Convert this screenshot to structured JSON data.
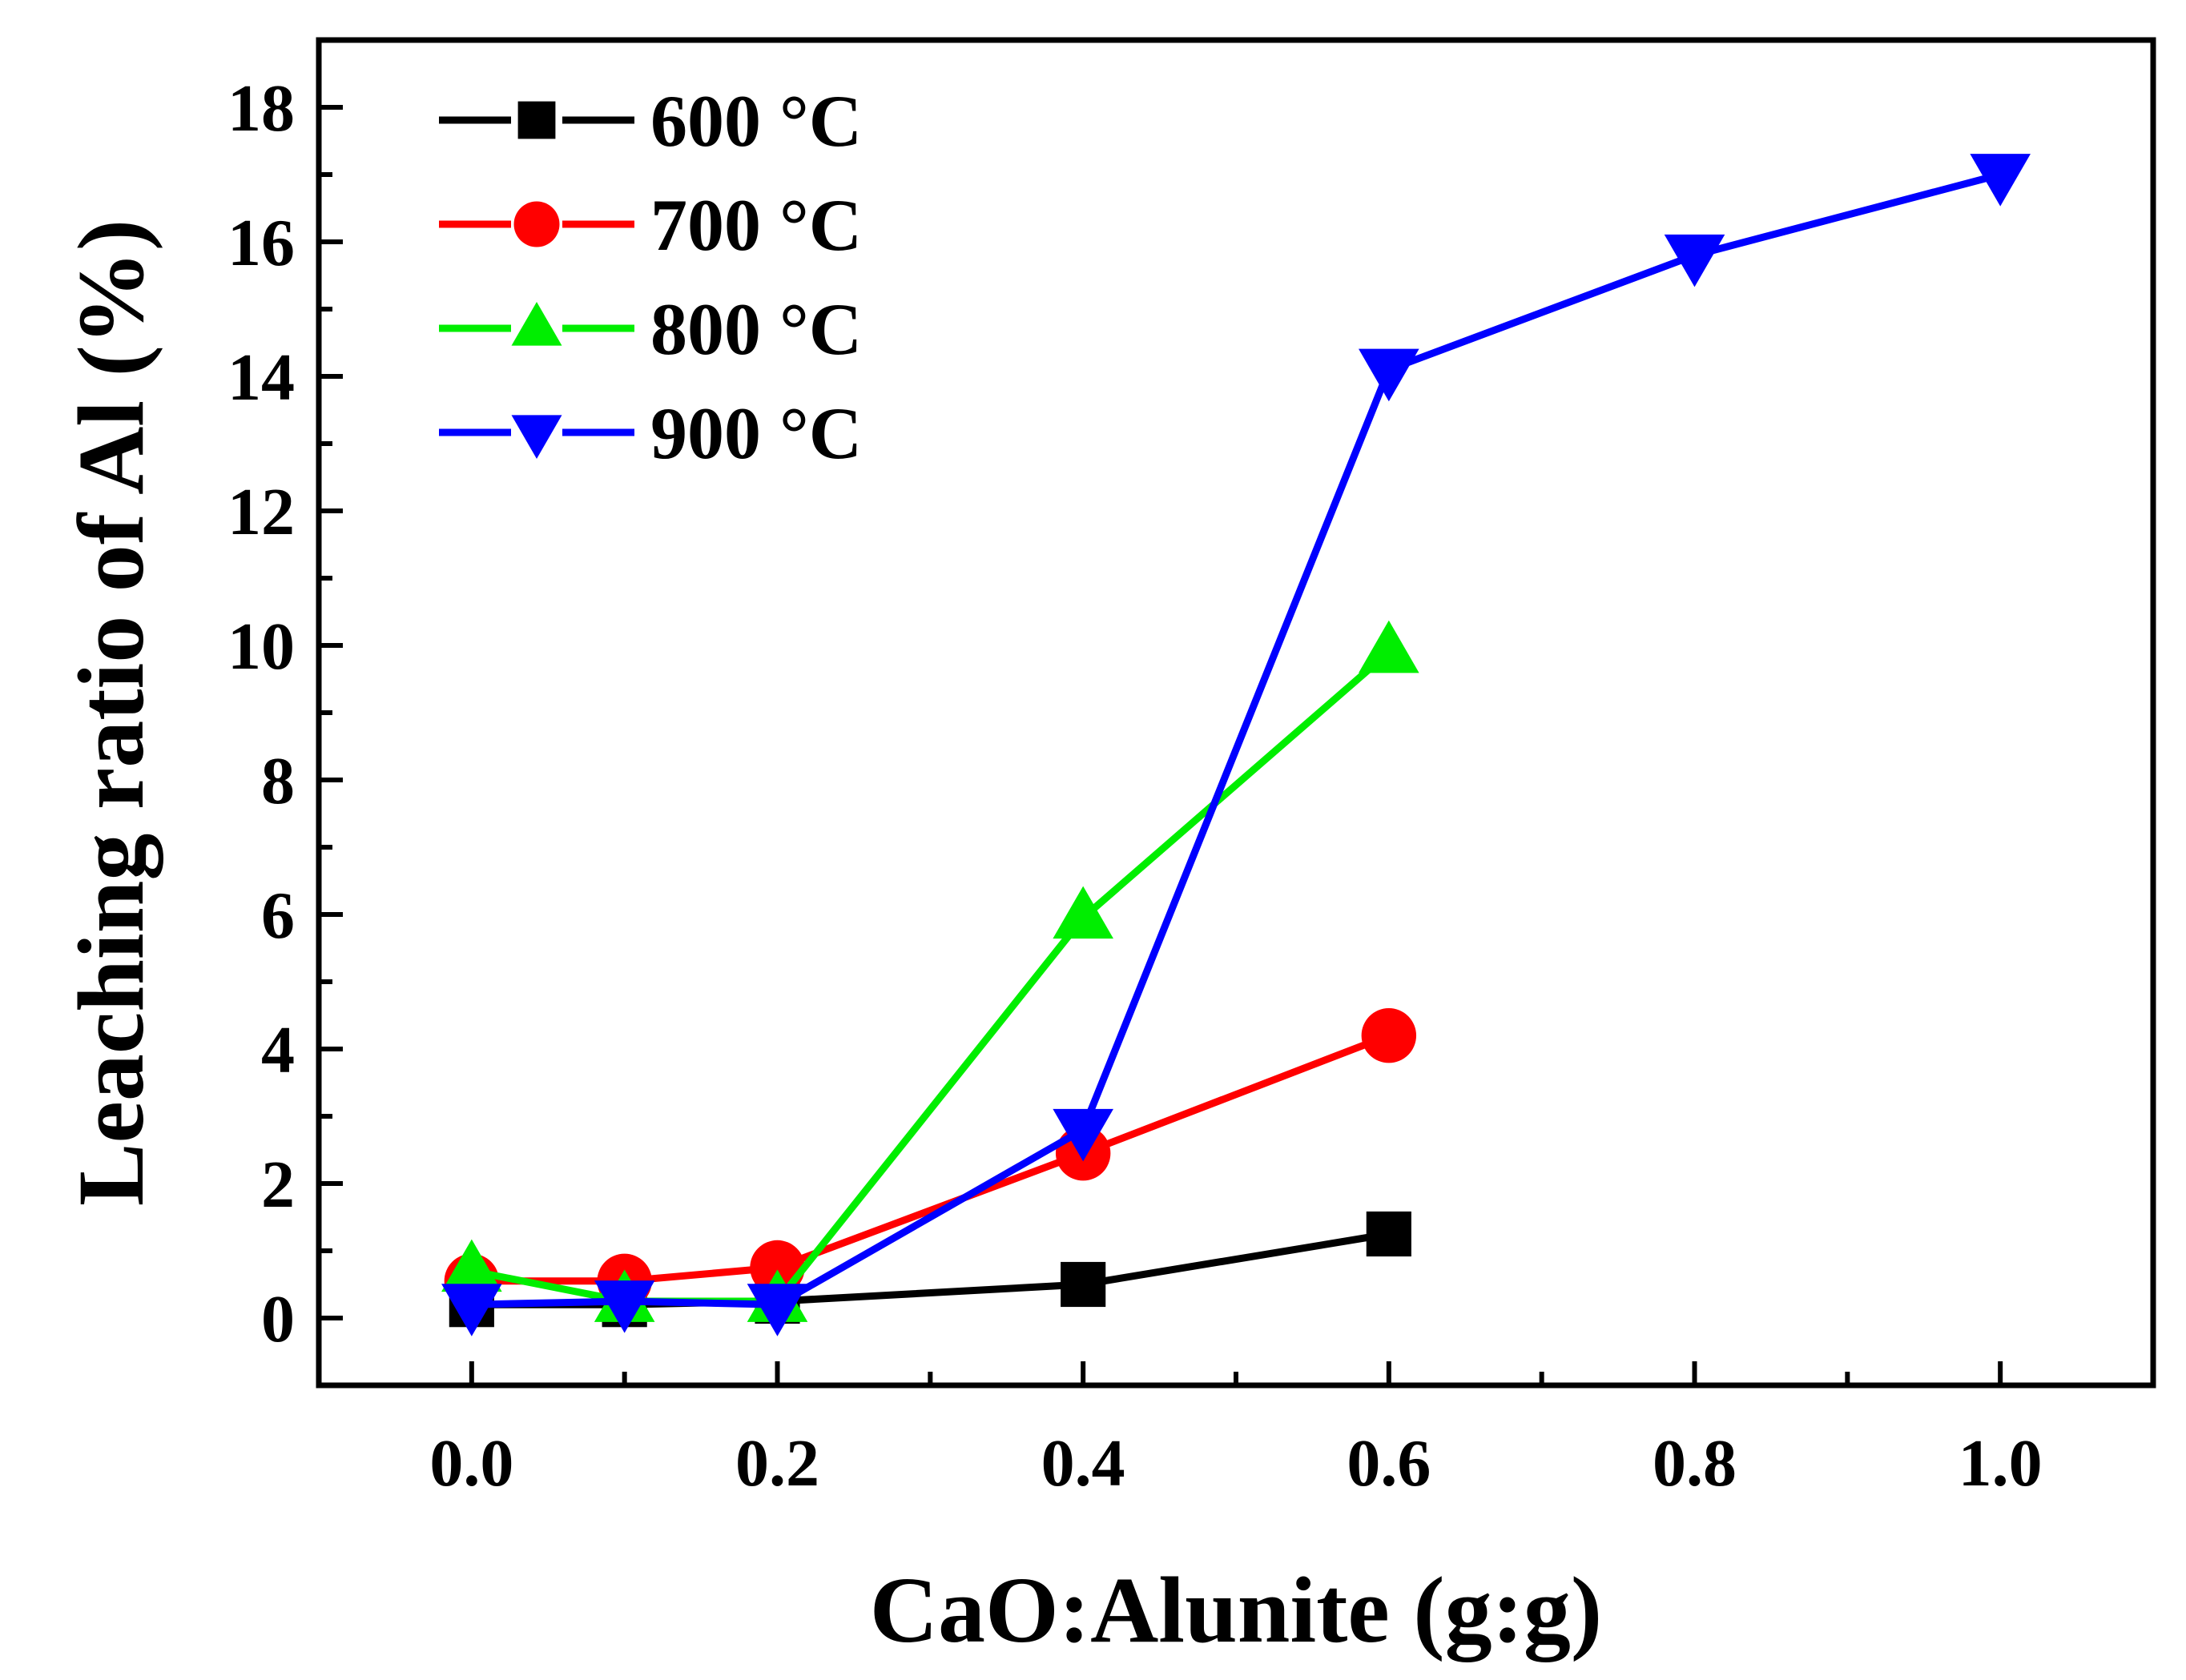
{
  "chart_data": {
    "type": "line",
    "title": "",
    "xlabel": "CaO:Alunite (g:g)",
    "ylabel": "Leaching ratio of Al (%)",
    "xlim": [
      -0.1,
      1.1
    ],
    "ylim": [
      -1,
      19
    ],
    "x_ticks": [
      "0.0",
      "0.2",
      "0.4",
      "0.6",
      "0.8",
      "1.0"
    ],
    "y_ticks": [
      "0",
      "2",
      "4",
      "6",
      "8",
      "10",
      "12",
      "14",
      "16",
      "18"
    ],
    "legend_position": "top-left",
    "grid": false,
    "series": [
      {
        "name": "600 °C",
        "color": "#000000",
        "marker": "square",
        "x": [
          0.0,
          0.1,
          0.2,
          0.4,
          0.6
        ],
        "y": [
          0.2,
          0.2,
          0.25,
          0.5,
          1.25
        ]
      },
      {
        "name": "700 °C",
        "color": "#ff0000",
        "marker": "circle",
        "x": [
          0.0,
          0.1,
          0.2,
          0.4,
          0.6
        ],
        "y": [
          0.55,
          0.55,
          0.75,
          2.45,
          4.2
        ]
      },
      {
        "name": "800 °C",
        "color": "#00ee00",
        "marker": "triangle-up",
        "x": [
          0.0,
          0.1,
          0.2,
          0.4,
          0.6
        ],
        "y": [
          0.7,
          0.25,
          0.25,
          5.95,
          9.9
        ]
      },
      {
        "name": "900 °C",
        "color": "#0000ff",
        "marker": "triangle-down",
        "x": [
          0.0,
          0.1,
          0.2,
          0.4,
          0.6,
          0.8,
          1.0
        ],
        "y": [
          0.2,
          0.25,
          0.2,
          2.8,
          14.1,
          15.8,
          17.0
        ]
      }
    ]
  }
}
